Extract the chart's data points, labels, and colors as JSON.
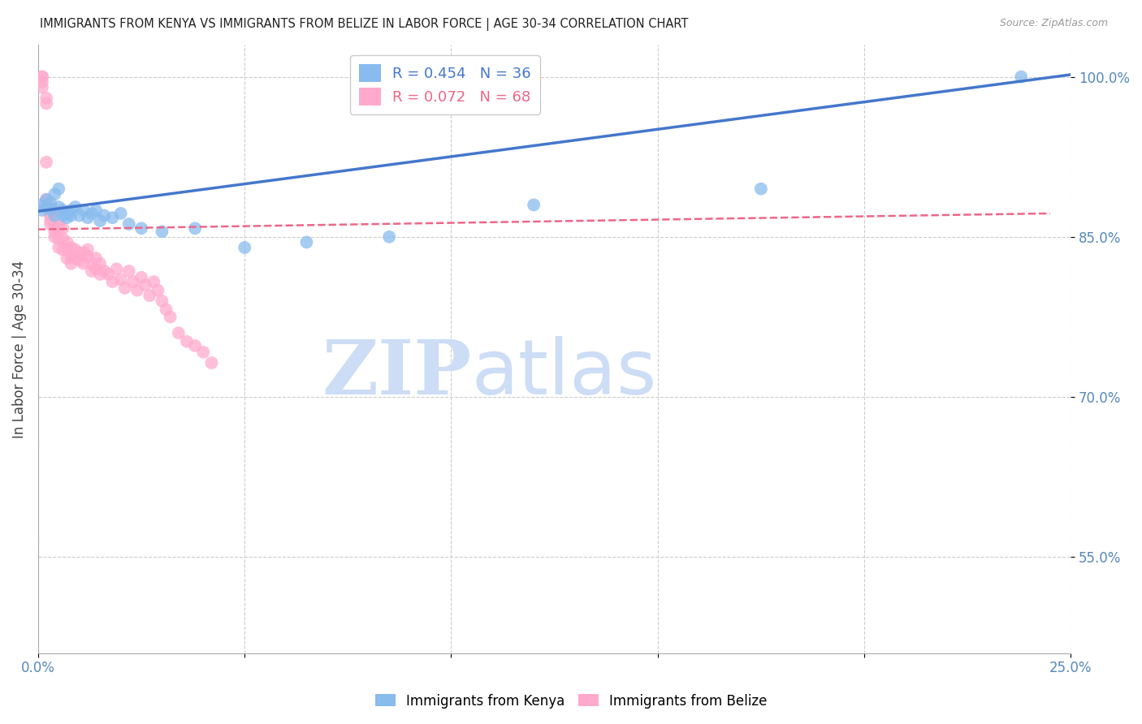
{
  "title": "IMMIGRANTS FROM KENYA VS IMMIGRANTS FROM BELIZE IN LABOR FORCE | AGE 30-34 CORRELATION CHART",
  "source_text": "Source: ZipAtlas.com",
  "ylabel": "In Labor Force | Age 30-34",
  "xlim": [
    0.0,
    0.25
  ],
  "ylim": [
    0.46,
    1.03
  ],
  "xticks": [
    0.0,
    0.05,
    0.1,
    0.15,
    0.2,
    0.25
  ],
  "xtick_labels": [
    "0.0%",
    "",
    "",
    "",
    "",
    "25.0%"
  ],
  "ytick_labels": [
    "55.0%",
    "70.0%",
    "85.0%",
    "100.0%"
  ],
  "yticks": [
    0.55,
    0.7,
    0.85,
    1.0
  ],
  "kenya_color": "#88BBEE",
  "belize_color": "#FFAACC",
  "kenya_line_color": "#4477CC",
  "belize_line_color": "#EE6688",
  "kenya_R": "R = 0.454",
  "kenya_N": "N = 36",
  "belize_R": "R = 0.072",
  "belize_N": "N = 68",
  "watermark_zip": "ZIP",
  "watermark_atlas": "atlas",
  "watermark_color": "#CCDDF5",
  "axis_label_color": "#5588BB",
  "grid_color": "#CCCCCC",
  "kenya_scatter_x": [
    0.001,
    0.001,
    0.002,
    0.002,
    0.003,
    0.003,
    0.004,
    0.004,
    0.005,
    0.005,
    0.006,
    0.006,
    0.007,
    0.007,
    0.008,
    0.008,
    0.009,
    0.01,
    0.011,
    0.012,
    0.013,
    0.014,
    0.015,
    0.016,
    0.018,
    0.02,
    0.022,
    0.025,
    0.03,
    0.038,
    0.05,
    0.065,
    0.085,
    0.12,
    0.175,
    0.238
  ],
  "kenya_scatter_y": [
    0.88,
    0.875,
    0.885,
    0.878,
    0.882,
    0.876,
    0.89,
    0.87,
    0.895,
    0.878,
    0.875,
    0.87,
    0.872,
    0.868,
    0.875,
    0.87,
    0.878,
    0.87,
    0.875,
    0.868,
    0.872,
    0.875,
    0.865,
    0.87,
    0.868,
    0.872,
    0.862,
    0.858,
    0.855,
    0.858,
    0.84,
    0.845,
    0.85,
    0.88,
    0.895,
    1.0
  ],
  "belize_scatter_x": [
    0.001,
    0.001,
    0.001,
    0.001,
    0.002,
    0.002,
    0.002,
    0.002,
    0.002,
    0.003,
    0.003,
    0.003,
    0.003,
    0.003,
    0.003,
    0.004,
    0.004,
    0.004,
    0.004,
    0.005,
    0.005,
    0.005,
    0.005,
    0.006,
    0.006,
    0.006,
    0.007,
    0.007,
    0.007,
    0.008,
    0.008,
    0.008,
    0.009,
    0.009,
    0.01,
    0.01,
    0.011,
    0.011,
    0.012,
    0.012,
    0.013,
    0.013,
    0.014,
    0.014,
    0.015,
    0.015,
    0.016,
    0.017,
    0.018,
    0.019,
    0.02,
    0.021,
    0.022,
    0.023,
    0.024,
    0.025,
    0.026,
    0.027,
    0.028,
    0.029,
    0.03,
    0.031,
    0.032,
    0.034,
    0.036,
    0.038,
    0.04,
    0.042
  ],
  "belize_scatter_y": [
    1.0,
    1.0,
    0.995,
    0.99,
    0.98,
    0.975,
    0.92,
    0.885,
    0.878,
    0.875,
    0.87,
    0.862,
    0.878,
    0.87,
    0.865,
    0.86,
    0.855,
    0.875,
    0.85,
    0.862,
    0.858,
    0.848,
    0.84,
    0.858,
    0.848,
    0.838,
    0.845,
    0.838,
    0.83,
    0.84,
    0.832,
    0.825,
    0.838,
    0.83,
    0.835,
    0.828,
    0.835,
    0.825,
    0.838,
    0.832,
    0.825,
    0.818,
    0.83,
    0.82,
    0.815,
    0.825,
    0.818,
    0.815,
    0.808,
    0.82,
    0.81,
    0.802,
    0.818,
    0.808,
    0.8,
    0.812,
    0.805,
    0.795,
    0.808,
    0.8,
    0.79,
    0.782,
    0.775,
    0.76,
    0.752,
    0.748,
    0.742,
    0.732
  ]
}
